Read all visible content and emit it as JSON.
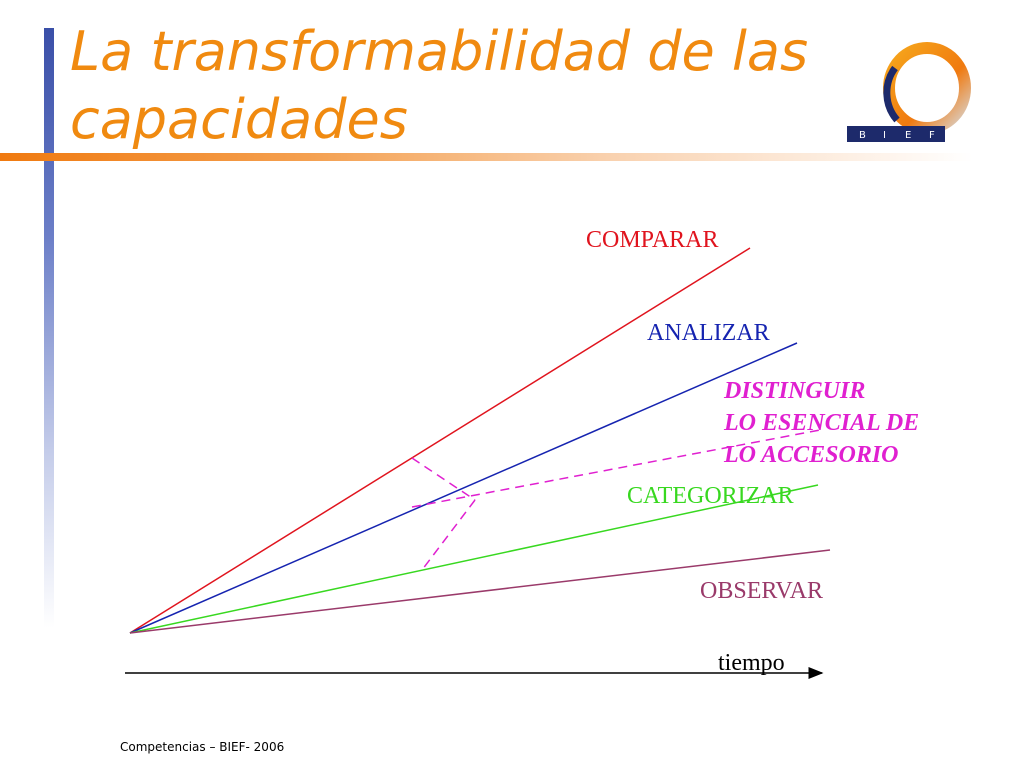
{
  "slide": {
    "title_line1": "La transformabilidad de las",
    "title_line2": "capacidades",
    "footer": "Competencias – BIEF- 2006"
  },
  "logo": {
    "letters": [
      "B",
      "I",
      "E",
      "F"
    ],
    "ring_colors": [
      "#f08a10",
      "#1d2a6b"
    ]
  },
  "diagram": {
    "labels": {
      "comparar": "COMPARAR",
      "analizar": "ANALIZAR",
      "distinguir_1": "DISTINGUIR",
      "distinguir_2": "LO ESENCIAL DE",
      "distinguir_3": "LO ACCESORIO",
      "categorizar": "CATEGORIZAR",
      "observar": "OBSERVAR",
      "time_axis": "tiempo"
    },
    "colors": {
      "comparar": "#e0141e",
      "analizar": "#1624b0",
      "distinguir": "#e020d0",
      "categorizar": "#38d820",
      "observar": "#9a3a6a",
      "axis": "#000000"
    }
  }
}
